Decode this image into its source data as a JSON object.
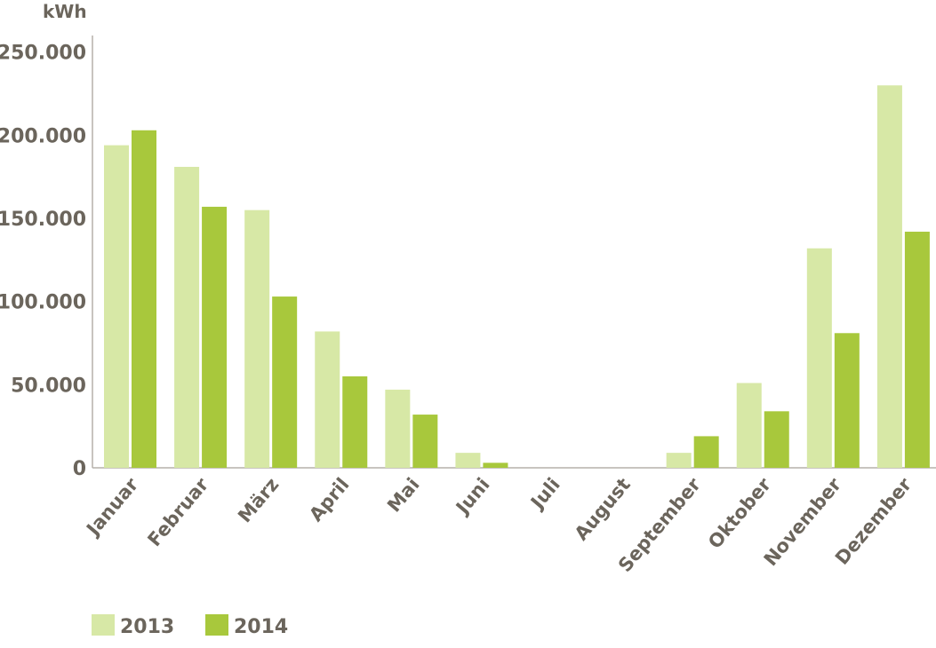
{
  "chart_data": {
    "type": "bar",
    "unit_label": "kWh",
    "categories": [
      "Januar",
      "Februar",
      "März",
      "April",
      "Mai",
      "Juni",
      "Juli",
      "August",
      "September",
      "Oktober",
      "November",
      "Dezember"
    ],
    "series": [
      {
        "name": "2013",
        "color": "#d7e8a6",
        "values": [
          194000,
          181000,
          155000,
          82000,
          47000,
          9000,
          0,
          0,
          9000,
          51000,
          132000,
          230000
        ]
      },
      {
        "name": "2014",
        "color": "#a8c83c",
        "values": [
          203000,
          157000,
          103000,
          55000,
          32000,
          3000,
          0,
          0,
          19000,
          34000,
          81000,
          142000
        ]
      }
    ],
    "ylim": [
      0,
      260000
    ],
    "yticks": [
      0,
      50000,
      100000,
      150000,
      200000,
      250000
    ],
    "ytick_labels": [
      "0",
      "50.000",
      "100.000",
      "150.000",
      "200.000",
      "250.000"
    ],
    "axis_color": "#b5b0aa",
    "text_color": "#6b655c",
    "grid": false,
    "legend_position": "bottom-left"
  }
}
